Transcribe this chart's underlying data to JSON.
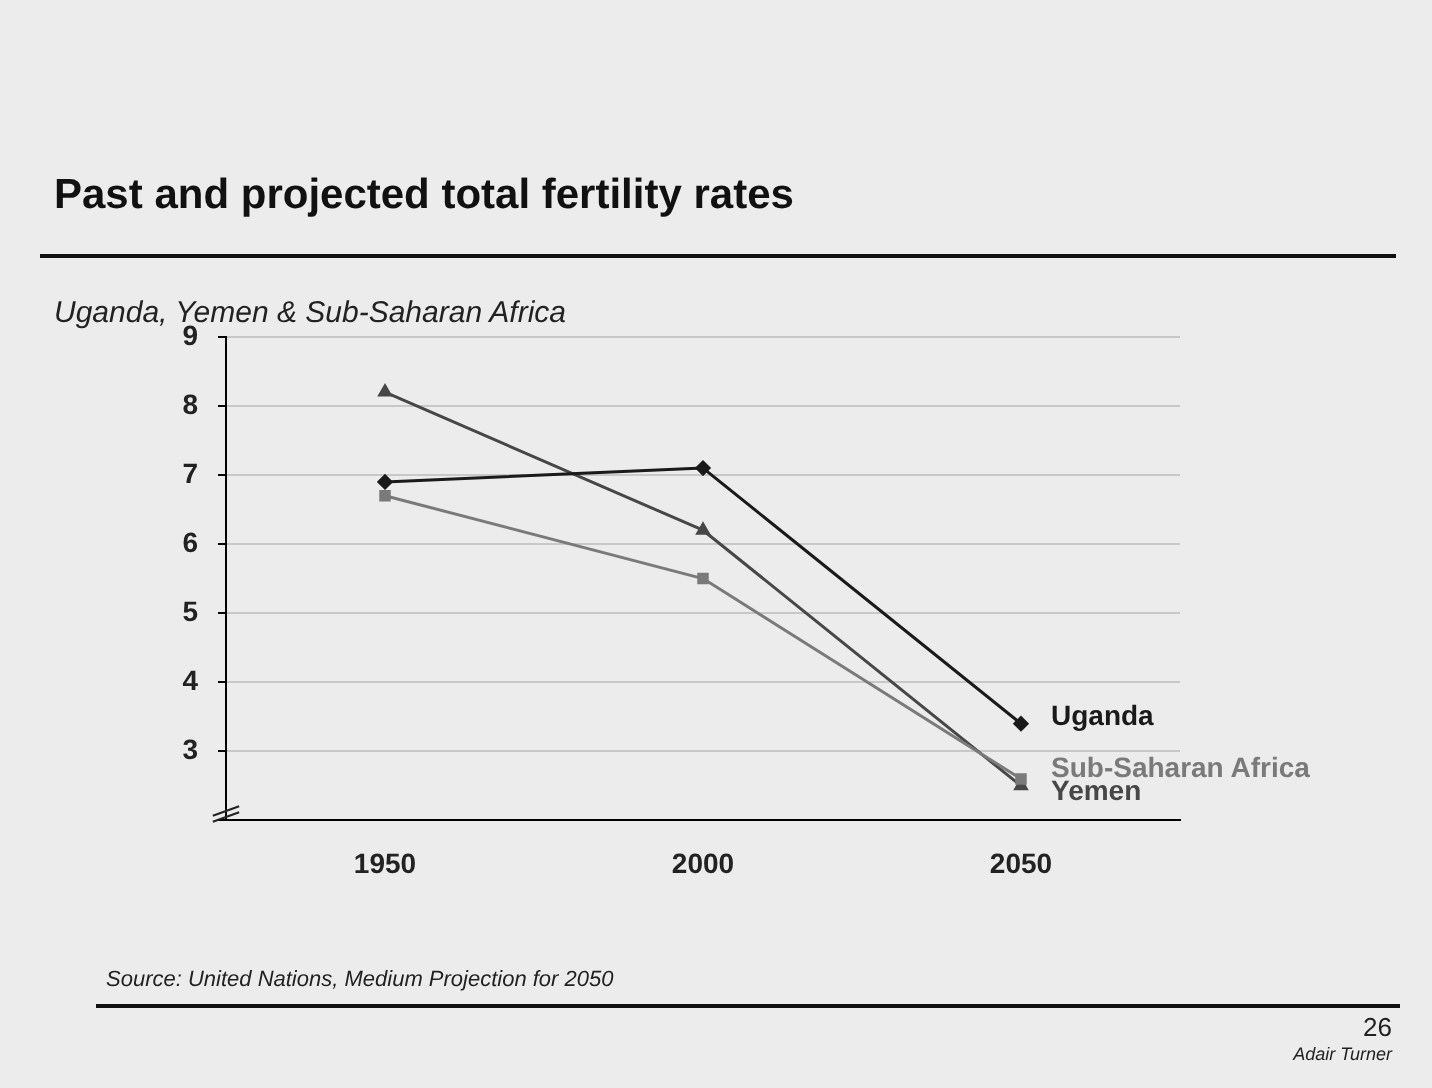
{
  "chart_data": {
    "type": "line",
    "title": "Past and projected total fertility rates",
    "subtitle": "Uganda, Yemen & Sub-Saharan Africa",
    "categories": [
      "1950",
      "2000",
      "2050"
    ],
    "series": [
      {
        "name": "Uganda",
        "color": "#1a1a1a",
        "marker": "diamond",
        "values": [
          6.9,
          7.1,
          3.4
        ]
      },
      {
        "name": "Sub-Saharan Africa",
        "color": "#7a7a7a",
        "marker": "square",
        "values": [
          6.7,
          5.5,
          2.6
        ]
      },
      {
        "name": "Yemen",
        "color": "#474747",
        "marker": "triangle",
        "values": [
          8.2,
          6.2,
          2.5
        ]
      }
    ],
    "ylim": [
      2,
      9
    ],
    "yticks": [
      {
        "value": 2,
        "label": null
      },
      3,
      4,
      5,
      6,
      7,
      8,
      9
    ],
    "grid": "y",
    "line_style": "solid",
    "legend": false,
    "annotations": [
      "Source: United Nations, Medium Projection for 2050",
      "26",
      "Adair Turner"
    ]
  }
}
